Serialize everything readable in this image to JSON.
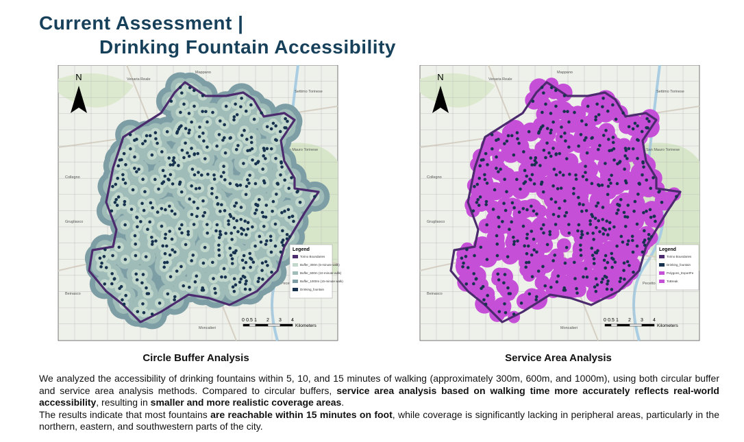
{
  "header": {
    "title_line1": "Current Assessment |",
    "title_line2": "Drinking Fountain Accessibility"
  },
  "maps": [
    {
      "caption": "Circle Buffer Analysis",
      "north": "N",
      "places": [
        "Mappano",
        "Venaria Reale",
        "Settimo Torinese",
        "San Mauro Torinese",
        "Collegno",
        "Grugliasco",
        "Beinasco",
        "Moncalieri",
        "Pecetto Torinese"
      ],
      "legend": {
        "title": "Legend",
        "items": [
          "Torino Boundaries",
          "Buffer_300m (5-minute walk)",
          "Buffer_600m (10-minute walk)",
          "Buffer_1000m (15-minute walk)",
          "Drinking_fountain"
        ]
      },
      "scale": {
        "labels": [
          "0",
          "0.5",
          "1",
          "2",
          "3",
          "4"
        ],
        "unit": "Kilometers"
      }
    },
    {
      "caption": "Service Area Analysis",
      "north": "N",
      "places": [
        "Mappano",
        "Venaria Reale",
        "Settimo Torinese",
        "San Mauro Torinese",
        "Collegno",
        "Grugliasco",
        "Beinasco",
        "Moncalieri",
        "Pecetto Torinese"
      ],
      "legend": {
        "title": "Legend",
        "items": [
          "Torino Boundaries",
          "Drinking_fountain",
          "Polygons_ExportFe",
          "ToBreak"
        ]
      },
      "scale": {
        "labels": [
          "0",
          "0.5",
          "1",
          "2",
          "3",
          "4"
        ],
        "unit": "Kilometers"
      }
    }
  ],
  "body": {
    "paragraphs": [
      [
        {
          "text": "We analyzed the accessibility of drinking fountains within 5, 10, and 15 minutes of walking (approximately 300m, 600m, and 1000m), using both circular buffer and service area analysis methods. Compared to circular buffers, "
        },
        {
          "text": "service area analysis based on walking time more accurately reflects real-world accessibility",
          "bold": true
        },
        {
          "text": ", resulting in "
        },
        {
          "text": "smaller and more realistic coverage areas",
          "bold": true
        },
        {
          "text": "."
        }
      ],
      [
        {
          "text": "The results indicate that most fountains "
        },
        {
          "text": "are reachable within 15 minutes on foot",
          "bold": true
        },
        {
          "text": ", while coverage is significantly lacking in peripheral areas, particularly in the northern, eastern, and southwestern parts of the city."
        }
      ]
    ]
  }
}
